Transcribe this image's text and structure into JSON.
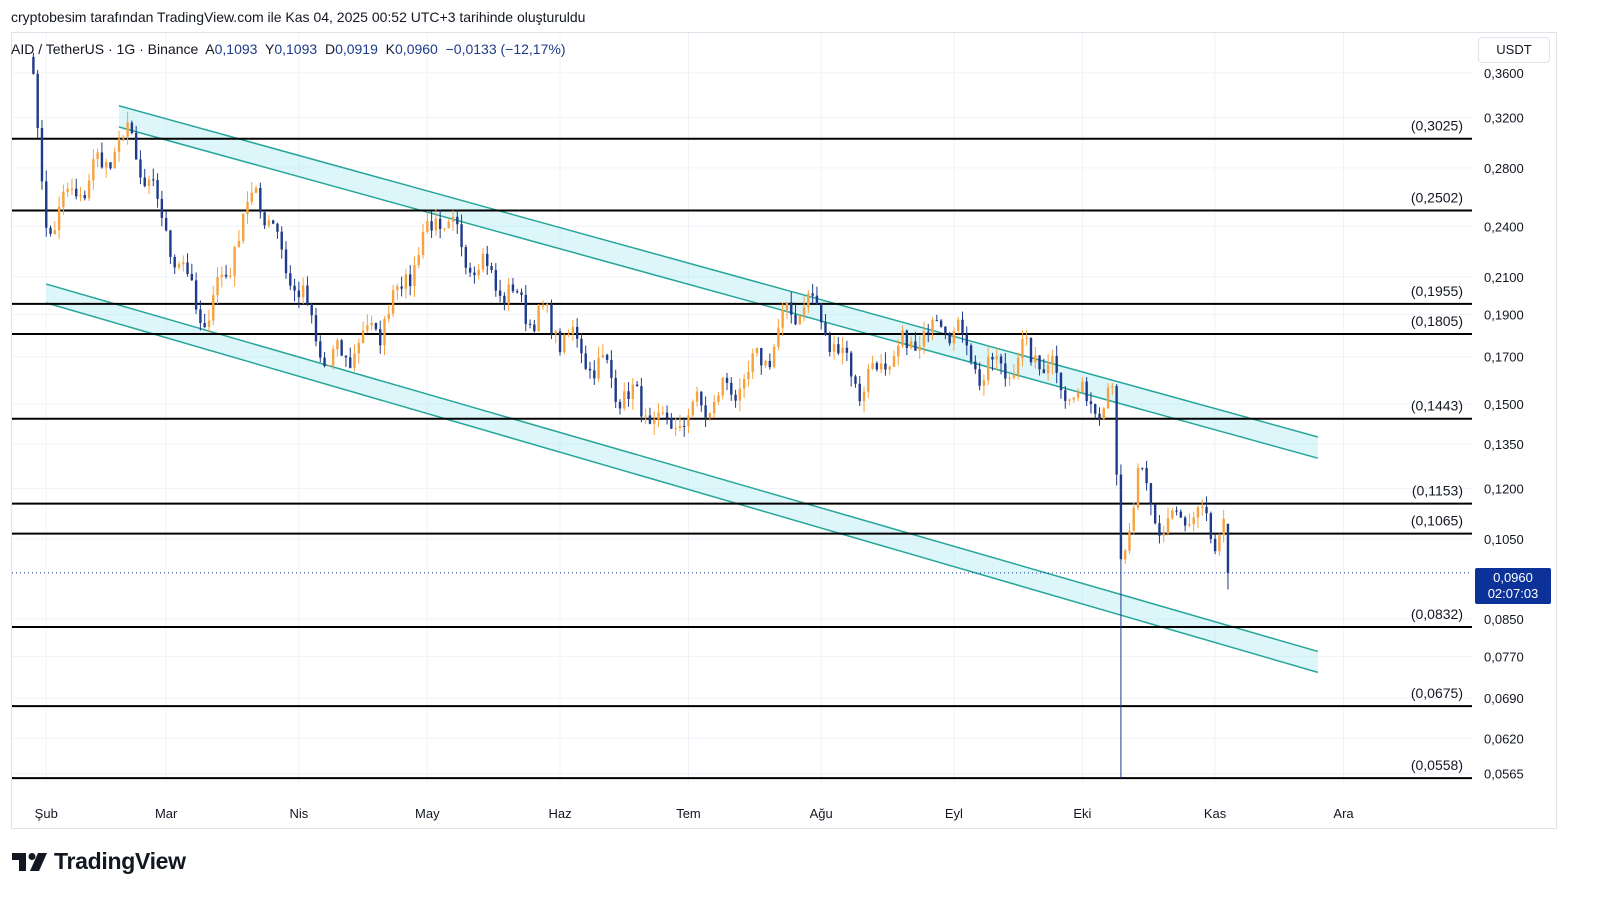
{
  "header": {
    "attribution": "cryptobesim tarafından TradingView.com ile Kas 04, 2025 00:52 UTC+3 tarihinde oluşturuldu"
  },
  "legend": {
    "symbol": "AID / TetherUS · 1G · Binance",
    "open_label": "A",
    "open": "0,1093",
    "high_label": "Y",
    "high": "0,1093",
    "low_label": "D",
    "low": "0,0919",
    "close_label": "K",
    "close": "0,0960",
    "change": "−0,0133 (−12,17%)"
  },
  "axis": {
    "currency": "USDT",
    "y_ticks": [
      "0,3600",
      "0,3200",
      "0,2800",
      "0,2400",
      "0,2100",
      "0,1900",
      "0,1700",
      "0,1500",
      "0,1350",
      "0,1200",
      "0,1050",
      "0,0850",
      "0,0770",
      "0,0690",
      "0,0620",
      "0,0565"
    ],
    "x_ticks": [
      "Şub",
      "Mar",
      "Nis",
      "May",
      "Haz",
      "Tem",
      "Ağu",
      "Eyl",
      "Eki",
      "Kas",
      "Ara"
    ]
  },
  "current_price": {
    "price": "0,0960",
    "countdown": "02:07:03"
  },
  "brand": {
    "name": "TradingView"
  },
  "colors": {
    "up": "#f7a23c",
    "down": "#1e3a8a",
    "channel": "#26a69a",
    "channel_fill": "#b2ebf2",
    "level": "#000000",
    "badge": "#0c3299"
  },
  "chart_data": {
    "type": "candlestick",
    "scale": "log",
    "ylim": [
      0.0548,
      0.4
    ],
    "levels": [
      {
        "label": "(0,3025)",
        "value": 0.3025
      },
      {
        "label": "(0,2502)",
        "value": 0.2502
      },
      {
        "label": "(0,1955)",
        "value": 0.1955
      },
      {
        "label": "(0,1805)",
        "value": 0.1805
      },
      {
        "label": "(0,1443)",
        "value": 0.1443
      },
      {
        "label": "(0,1153)",
        "value": 0.1153
      },
      {
        "label": "(0,1065)",
        "value": 0.1065
      },
      {
        "label": "(0,0832)",
        "value": 0.0832
      },
      {
        "label": "(0,0675)",
        "value": 0.0675
      },
      {
        "label": "(0,0558)",
        "value": 0.0558
      }
    ],
    "channels": [
      {
        "name": "upper",
        "start": {
          "date": "2025-02-18",
          "outer": 0.33,
          "inner": 0.312
        },
        "end": {
          "date": "2025-11-25",
          "outer": 0.1375,
          "inner": 0.13
        }
      },
      {
        "name": "lower",
        "start": {
          "date": "2025-02-01",
          "outer": 0.206,
          "inner": 0.196
        },
        "end": {
          "date": "2025-11-25",
          "outer": 0.078,
          "inner": 0.0738
        }
      }
    ],
    "anchors": [
      {
        "date": "2025-01-28",
        "price": 0.385
      },
      {
        "date": "2025-02-01",
        "price": 0.24
      },
      {
        "date": "2025-02-20",
        "price": 0.305
      },
      {
        "date": "2025-03-10",
        "price": 0.185
      },
      {
        "date": "2025-03-22",
        "price": 0.265
      },
      {
        "date": "2025-04-08",
        "price": 0.165
      },
      {
        "date": "2025-04-20",
        "price": 0.185
      },
      {
        "date": "2025-05-03",
        "price": 0.245
      },
      {
        "date": "2025-05-20",
        "price": 0.2
      },
      {
        "date": "2025-06-05",
        "price": 0.175
      },
      {
        "date": "2025-06-25",
        "price": 0.14
      },
      {
        "date": "2025-07-15",
        "price": 0.16
      },
      {
        "date": "2025-07-28",
        "price": 0.2
      },
      {
        "date": "2025-08-10",
        "price": 0.158
      },
      {
        "date": "2025-08-22",
        "price": 0.175
      },
      {
        "date": "2025-08-30",
        "price": 0.19
      },
      {
        "date": "2025-09-08",
        "price": 0.162
      },
      {
        "date": "2025-09-20",
        "price": 0.172
      },
      {
        "date": "2025-10-01",
        "price": 0.15
      },
      {
        "date": "2025-10-08",
        "price": 0.155
      },
      {
        "date": "2025-10-10",
        "price": 0.098
      },
      {
        "date": "2025-10-14",
        "price": 0.122
      },
      {
        "date": "2025-10-20",
        "price": 0.108
      },
      {
        "date": "2025-10-26",
        "price": 0.112
      },
      {
        "date": "2025-11-01",
        "price": 0.105
      },
      {
        "date": "2025-11-03",
        "price": 0.109
      }
    ],
    "last_candle": {
      "date": "2025-11-04",
      "open": 0.1093,
      "high": 0.1093,
      "low": 0.0919,
      "close": 0.096
    },
    "flash_low": {
      "date": "2025-10-10",
      "price": 0.0558
    }
  }
}
